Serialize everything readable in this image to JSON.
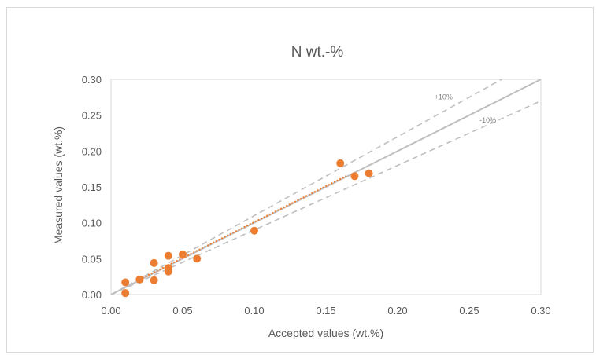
{
  "chart_data": {
    "type": "scatter",
    "title": "N wt.-%",
    "xlabel": "Accepted values (wt.%)",
    "ylabel": "Measured values (wt.%)",
    "xlim": [
      0,
      0.3
    ],
    "ylim": [
      0,
      0.3
    ],
    "xticks": [
      "0.00",
      "0.05",
      "0.10",
      "0.15",
      "0.20",
      "0.25",
      "0.30"
    ],
    "yticks": [
      "0.00",
      "0.05",
      "0.10",
      "0.15",
      "0.20",
      "0.25",
      "0.30"
    ],
    "grid": false,
    "points": [
      {
        "x": 0.01,
        "y": 0.017
      },
      {
        "x": 0.01,
        "y": 0.002
      },
      {
        "x": 0.02,
        "y": 0.021
      },
      {
        "x": 0.03,
        "y": 0.044
      },
      {
        "x": 0.03,
        "y": 0.02
      },
      {
        "x": 0.04,
        "y": 0.054
      },
      {
        "x": 0.04,
        "y": 0.037
      },
      {
        "x": 0.04,
        "y": 0.032
      },
      {
        "x": 0.05,
        "y": 0.056
      },
      {
        "x": 0.06,
        "y": 0.05
      },
      {
        "x": 0.1,
        "y": 0.089
      },
      {
        "x": 0.16,
        "y": 0.183
      },
      {
        "x": 0.17,
        "y": 0.165
      },
      {
        "x": 0.18,
        "y": 0.169
      }
    ],
    "trendline": {
      "x": [
        0.02,
        0.165
      ],
      "y": [
        0.021,
        0.166
      ]
    },
    "reference_lines": [
      {
        "label": "",
        "slope": 1.0
      },
      {
        "label": "+10%",
        "slope": 1.1
      },
      {
        "label": "-10%",
        "slope": 0.9
      }
    ],
    "colors": {
      "points": "#ed7d31",
      "trendline": "#ed7d31",
      "identity": "#bfbfbf",
      "bands": "#bfbfbf",
      "axis": "#d9d9d9",
      "text": "#595959"
    }
  }
}
